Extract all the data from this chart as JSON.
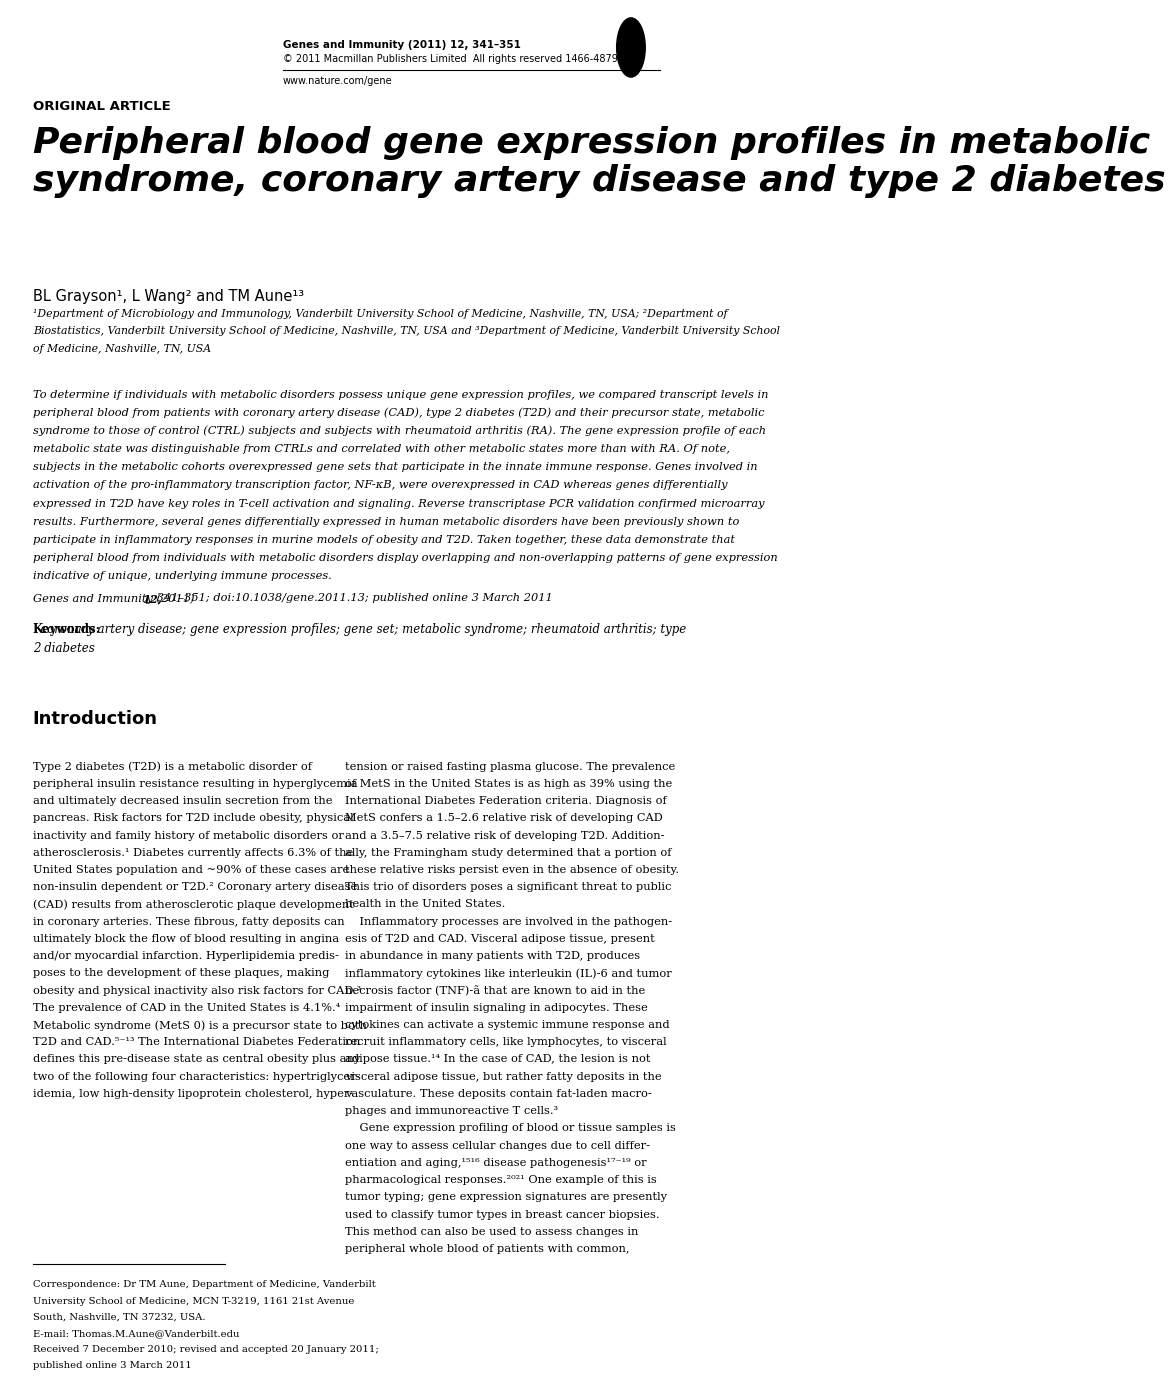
{
  "bg_color": "#ffffff",
  "header_journal": "Genes and Immunity (2011) 12, 341–351",
  "header_copyright": "© 2011 Macmillan Publishers Limited  All rights reserved 1466-4879/11",
  "header_url": "www.nature.com/gene",
  "article_type": "ORIGINAL ARTICLE",
  "title": "Peripheral blood gene expression profiles in metabolic\nsyndrome, coronary artery disease and type 2 diabetes",
  "authors": "BL Grayson¹, L Wang² and TM Aune¹³",
  "aff_lines": [
    "¹Department of Microbiology and Immunology, Vanderbilt University School of Medicine, Nashville, TN, USA; ²Department of",
    "Biostatistics, Vanderbilt University School of Medicine, Nashville, TN, USA and ³Department of Medicine, Vanderbilt University School",
    "of Medicine, Nashville, TN, USA"
  ],
  "abstract_lines": [
    "To determine if individuals with metabolic disorders possess unique gene expression profiles, we compared transcript levels in",
    "peripheral blood from patients with coronary artery disease (CAD), type 2 diabetes (T2D) and their precursor state, metabolic",
    "syndrome to those of control (CTRL) subjects and subjects with rheumatoid arthritis (RA). The gene expression profile of each",
    "metabolic state was distinguishable from CTRLs and correlated with other metabolic states more than with RA. Of note,",
    "subjects in the metabolic cohorts overexpressed gene sets that participate in the innate immune response. Genes involved in",
    "activation of the pro-inflammatory transcription factor, NF-κB, were overexpressed in CAD whereas genes differentially",
    "expressed in T2D have key roles in T-cell activation and signaling. Reverse transcriptase PCR validation confirmed microarray",
    "results. Furthermore, several genes differentially expressed in human metabolic disorders have been previously shown to",
    "participate in inflammatory responses in murine models of obesity and T2D. Taken together, these data demonstrate that",
    "peripheral blood from individuals with metabolic disorders display overlapping and non-overlapping patterns of gene expression",
    "indicative of unique, underlying immune processes."
  ],
  "citation_normal": "Genes and Immunity (2011) ",
  "citation_bold": "12,",
  "citation_rest": " 341–351; doi:10.1038/gene.2011.13; published online 3 March 2011",
  "keywords_label": "Keywords:",
  "keywords_lines": [
    "  coronary artery disease; gene expression profiles; gene set; metabolic syndrome; rheumatoid arthritis; type",
    "2 diabetes"
  ],
  "intro_header": "Introduction",
  "col1_lines": [
    "Type 2 diabetes (T2D) is a metabolic disorder of",
    "peripheral insulin resistance resulting in hyperglycemia",
    "and ultimately decreased insulin secretion from the",
    "pancreas. Risk factors for T2D include obesity, physical",
    "inactivity and family history of metabolic disorders or",
    "atherosclerosis.¹ Diabetes currently affects 6.3% of the",
    "United States population and ~90% of these cases are",
    "non-insulin dependent or T2D.² Coronary artery disease",
    "(CAD) results from atherosclerotic plaque development",
    "in coronary arteries. These fibrous, fatty deposits can",
    "ultimately block the flow of blood resulting in angina",
    "and/or myocardial infarction. Hyperlipidemia predis-",
    "poses to the development of these plaques, making",
    "obesity and physical inactivity also risk factors for CAD.³",
    "The prevalence of CAD in the United States is 4.1%.⁴",
    "Metabolic syndrome (MetS 0) is a precursor state to both",
    "T2D and CAD.⁵⁻¹³ The International Diabetes Federation",
    "defines this pre-disease state as central obesity plus any",
    "two of the following four characteristics: hypertriglycer-",
    "idemia, low high-density lipoprotein cholesterol, hyper-"
  ],
  "col2_lines": [
    "tension or raised fasting plasma glucose. The prevalence",
    "of MetS in the United States is as high as 39% using the",
    "International Diabetes Federation criteria. Diagnosis of",
    "MetS confers a 1.5–2.6 relative risk of developing CAD",
    "and a 3.5–7.5 relative risk of developing T2D. Addition-",
    "ally, the Framingham study determined that a portion of",
    "these relative risks persist even in the absence of obesity.",
    "This trio of disorders poses a significant threat to public",
    "health in the United States.",
    "    Inflammatory processes are involved in the pathogen-",
    "esis of T2D and CAD. Visceral adipose tissue, present",
    "in abundance in many patients with T2D, produces",
    "inflammatory cytokines like interleukin (IL)-6 and tumor",
    "necrosis factor (TNF)-ã that are known to aid in the",
    "impairment of insulin signaling in adipocytes. These",
    "cytokines can activate a systemic immune response and",
    "recruit inflammatory cells, like lymphocytes, to visceral",
    "adipose tissue.¹⁴ In the case of CAD, the lesion is not",
    "visceral adipose tissue, but rather fatty deposits in the",
    "vasculature. These deposits contain fat-laden macro-",
    "phages and immunoreactive T cells.³",
    "    Gene expression profiling of blood or tissue samples is",
    "one way to assess cellular changes due to cell differ-",
    "entiation and aging,¹⁵¹⁶ disease pathogenesis¹⁷⁻¹⁹ or",
    "pharmacological responses.²⁰²¹ One example of this is",
    "tumor typing; gene expression signatures are presently",
    "used to classify tumor types in breast cancer biopsies.",
    "This method can also be used to assess changes in",
    "peripheral whole blood of patients with common,"
  ],
  "footnote_lines": [
    "Correspondence: Dr TM Aune, Department of Medicine, Vanderbilt",
    "University School of Medicine, MCN T-3219, 1161 21st Avenue",
    "South, Nashville, TN 37232, USA.",
    "E-mail: Thomas.M.Aune@Vanderbilt.edu",
    "Received 7 December 2010; revised and accepted 20 January 2011;",
    "published online 3 March 2011"
  ]
}
